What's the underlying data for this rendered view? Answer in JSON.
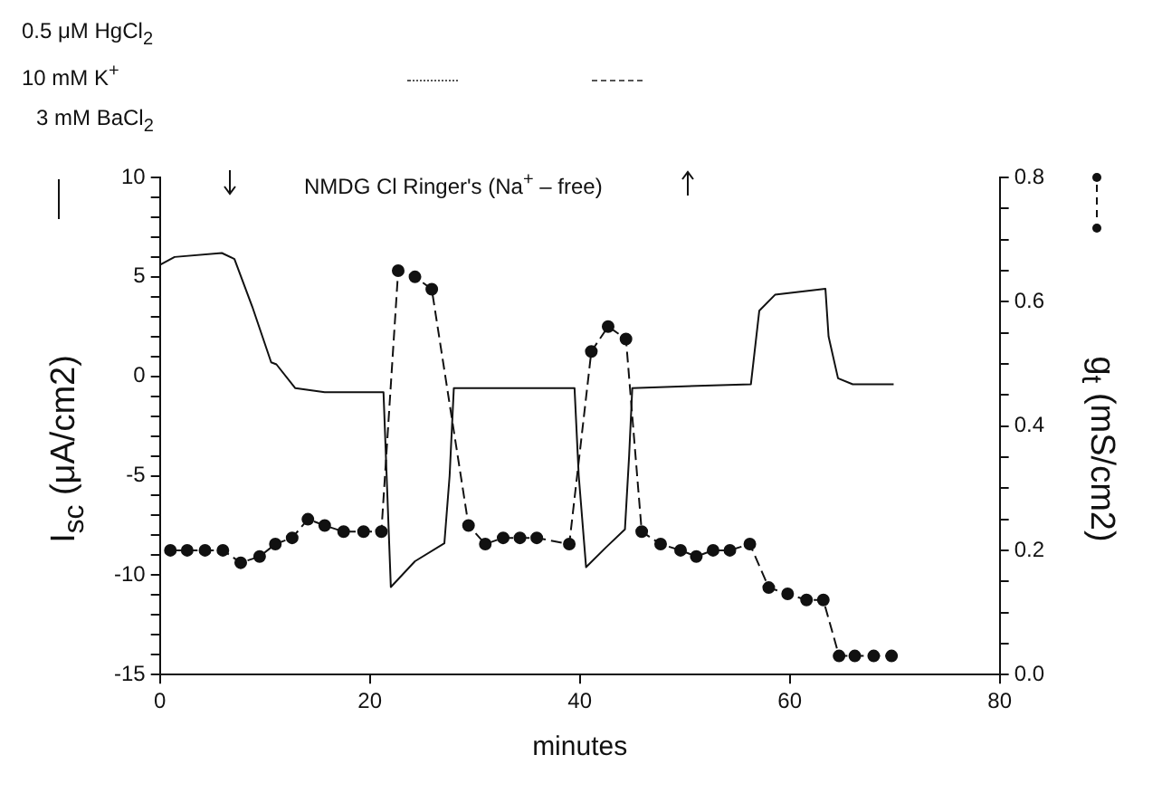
{
  "chart_data": {
    "type": "line",
    "xlabel": "minutes",
    "ylabel": "I$_{sc}$  (μA/cm2)",
    "y2label": "g$_{t}$  (mS/cm2)",
    "annotations": [
      "0.5 μM HgCl$_{2}$",
      "10 mM K$^{+}$",
      "3 mM BaCl$_{2}$",
      "NMDG Cl Ringer's  (Na$^{+}$ – free)"
    ],
    "series": [
      {
        "color": "#111111",
        "marker": "none",
        "line_style": "solid",
        "x": [
          0,
          1.4,
          5.9,
          7.1,
          8.8,
          10.6,
          11.1,
          12.9,
          15.7,
          21.3,
          21.6,
          22.0,
          24.3,
          27.1,
          27.6,
          28.0,
          32,
          39.5,
          39.9,
          40.6,
          42.5,
          44.3,
          44.7,
          45.0,
          50,
          56.3,
          57.1,
          58.6,
          63.4,
          63.7,
          64.6,
          66.0,
          69.9
        ],
        "values": [
          5.6,
          6.0,
          6.2,
          5.9,
          3.5,
          0.7,
          0.6,
          -0.6,
          -0.8,
          -0.8,
          -5,
          -10.6,
          -9.3,
          -8.4,
          -5,
          -0.6,
          -0.6,
          -0.6,
          -5,
          -9.6,
          -8.6,
          -7.7,
          -4,
          -0.6,
          -0.5,
          -0.4,
          3.3,
          4.1,
          4.4,
          2,
          -0.1,
          -0.4,
          -0.4
        ]
      },
      {
        "axis": "y2",
        "color": "#111111",
        "marker": "circle",
        "line_style": "dashed",
        "x": [
          1.0,
          2.6,
          4.3,
          6.0,
          7.7,
          9.5,
          11.0,
          12.6,
          14.1,
          15.7,
          17.5,
          19.4,
          21.1,
          22.7,
          24.3,
          25.9,
          29.4,
          31.0,
          32.7,
          34.3,
          35.9,
          39.0,
          41.1,
          42.7,
          44.4,
          45.9,
          47.7,
          49.6,
          51.1,
          52.7,
          54.3,
          56.2,
          58.0,
          59.8,
          61.6,
          63.2,
          64.7,
          66.2,
          68.0,
          69.7
        ],
        "values": [
          0.2,
          0.2,
          0.2,
          0.2,
          0.18,
          0.19,
          0.21,
          0.22,
          0.25,
          0.24,
          0.23,
          0.23,
          0.23,
          0.65,
          0.64,
          0.62,
          0.24,
          0.21,
          0.22,
          0.22,
          0.22,
          0.21,
          0.52,
          0.56,
          0.54,
          0.23,
          0.21,
          0.2,
          0.19,
          0.2,
          0.2,
          0.21,
          0.14,
          0.13,
          0.12,
          0.12,
          0.03,
          0.03,
          0.03,
          0.03
        ]
      }
    ],
    "xlim": [
      0,
      80
    ],
    "xticks": [
      0,
      20,
      40,
      60,
      80
    ],
    "ylim": [
      -15,
      10
    ],
    "yticks": [
      -15,
      {
        "value": -14,
        "label": null
      },
      {
        "value": -13,
        "label": null
      },
      {
        "value": -12,
        "label": null
      },
      {
        "value": -11,
        "label": null
      },
      -10,
      {
        "value": -9,
        "label": null
      },
      {
        "value": -8,
        "label": null
      },
      {
        "value": -7,
        "label": null
      },
      {
        "value": -6,
        "label": null
      },
      -5,
      {
        "value": -4,
        "label": null
      },
      {
        "value": -3,
        "label": null
      },
      {
        "value": -2,
        "label": null
      },
      {
        "value": -1,
        "label": null
      },
      0,
      {
        "value": 1,
        "label": null
      },
      {
        "value": 2,
        "label": null
      },
      {
        "value": 3,
        "label": null
      },
      {
        "value": 4,
        "label": null
      },
      5,
      {
        "value": 6,
        "label": null
      },
      {
        "value": 7,
        "label": null
      },
      {
        "value": 8,
        "label": null
      },
      {
        "value": 9,
        "label": null
      },
      10
    ],
    "y2lim": [
      0,
      0.8
    ],
    "y2ticks": [
      {
        "value": 0,
        "label": "0.0"
      },
      {
        "value": 0.05,
        "label": null
      },
      {
        "value": 0.1,
        "label": null
      },
      {
        "value": 0.15,
        "label": null
      },
      {
        "value": 0.2,
        "label": "0.2"
      },
      {
        "value": 0.25,
        "label": null
      },
      {
        "value": 0.3,
        "label": null
      },
      {
        "value": 0.35,
        "label": null
      },
      {
        "value": 0.4,
        "label": "0.4"
      },
      {
        "value": 0.45,
        "label": null
      },
      {
        "value": 0.5,
        "label": null
      },
      {
        "value": 0.55,
        "label": null
      },
      {
        "value": 0.6,
        "label": "0.6"
      },
      {
        "value": 0.65,
        "label": null
      },
      {
        "value": 0.7,
        "label": null
      },
      {
        "value": 0.75,
        "label": null
      },
      {
        "value": 0.8,
        "label": "0.8"
      }
    ],
    "grid": false,
    "legend": false
  }
}
